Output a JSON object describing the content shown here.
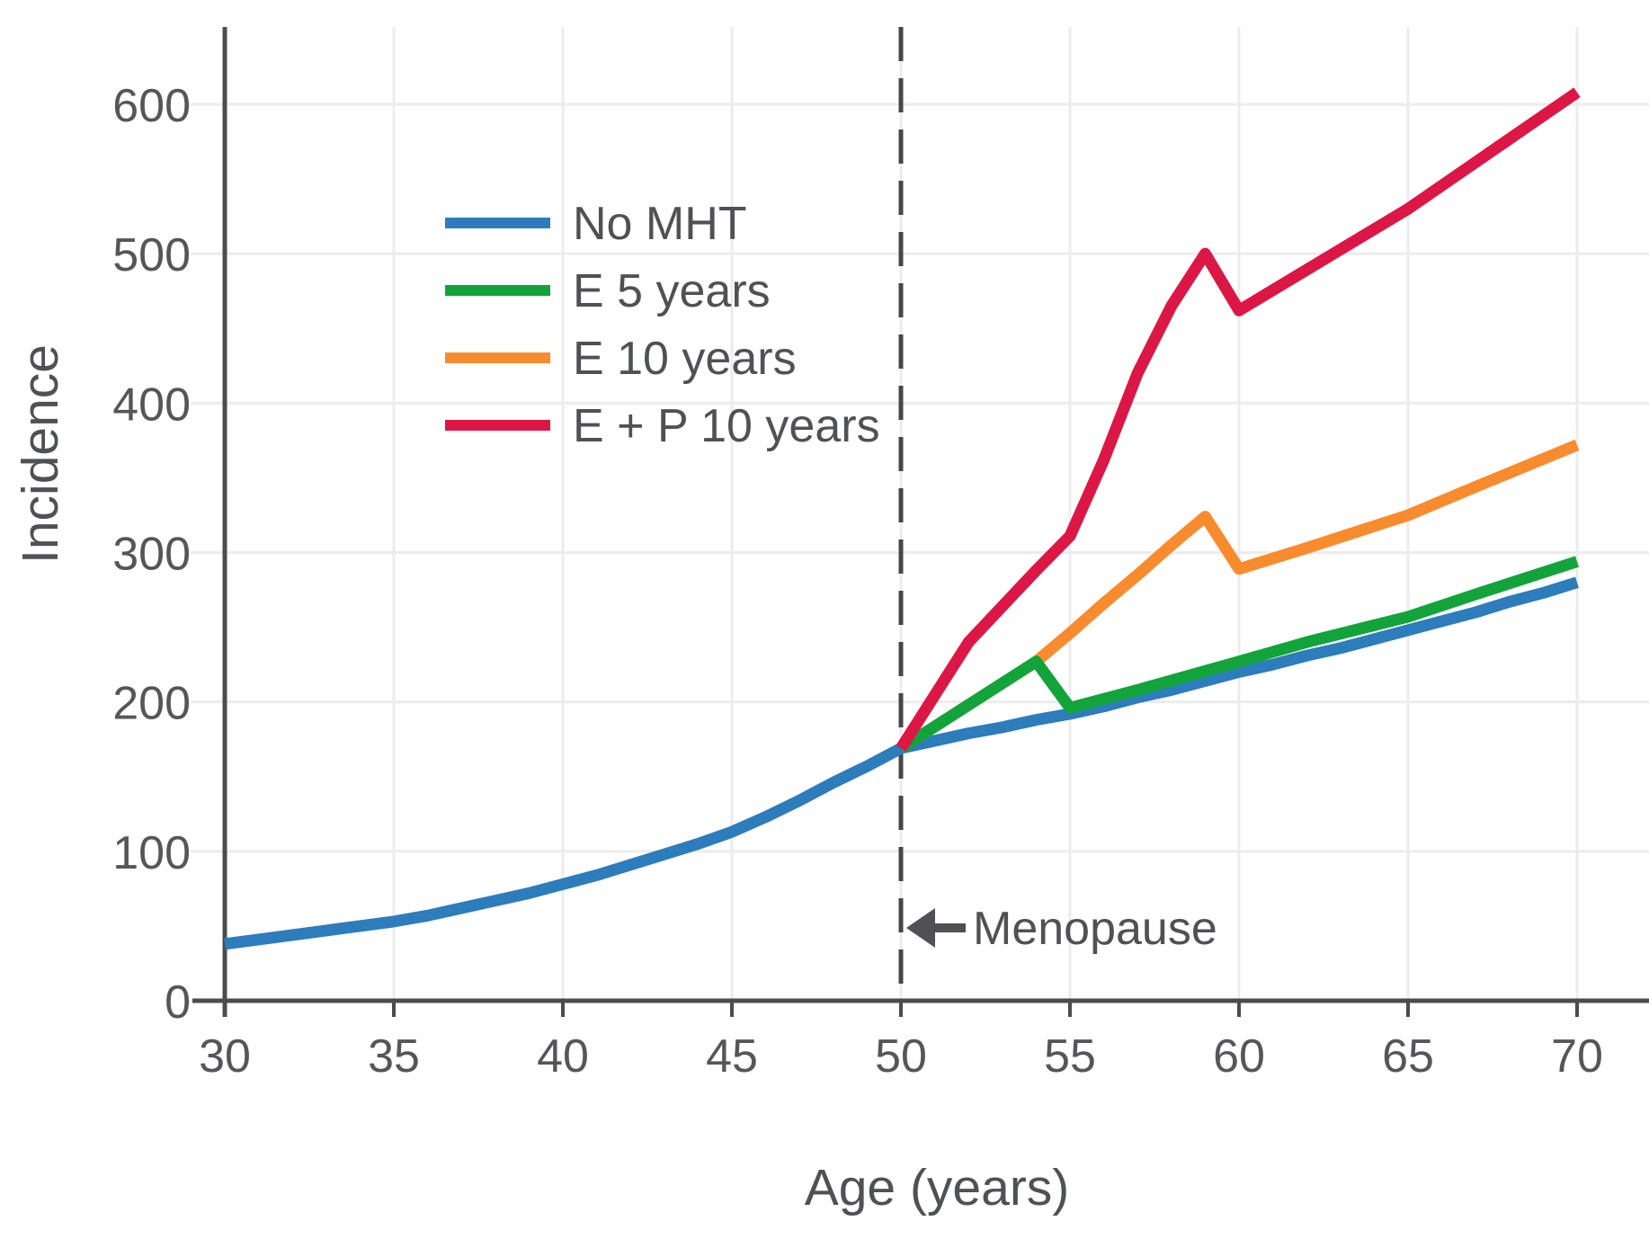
{
  "chart_data": {
    "type": "line",
    "title": "",
    "xlabel": "Age (years)",
    "ylabel": "Incidence",
    "x_ticks": [
      30,
      35,
      40,
      45,
      50,
      55,
      60,
      65,
      70
    ],
    "y_ticks": [
      0,
      100,
      200,
      300,
      400,
      500,
      600
    ],
    "xlim": [
      30,
      72.1
    ],
    "ylim": [
      0,
      651
    ],
    "grid": true,
    "legend_position": "upper left inside",
    "vline": {
      "x": 50,
      "style": "dashed",
      "color": "#47474a"
    },
    "annotation": {
      "text": "Menopause",
      "points_to_age": 50,
      "y_value": 49
    },
    "series": [
      {
        "name": "No MHT",
        "color": "#2d7cbb",
        "draw_order": 0,
        "x": [
          30,
          31,
          32,
          33,
          34,
          35,
          36,
          37,
          38,
          39,
          40,
          41,
          42,
          43,
          44,
          45,
          46,
          47,
          48,
          49,
          50,
          51,
          52,
          53,
          54,
          55,
          56,
          57,
          58,
          59,
          60,
          61,
          62,
          63,
          64,
          65,
          66,
          67,
          68,
          69,
          70
        ],
        "y": [
          38,
          41,
          44,
          47,
          50,
          53,
          57,
          62,
          67,
          72,
          78,
          84,
          91,
          98,
          105,
          113,
          123,
          134,
          146,
          157,
          169,
          174,
          179,
          183,
          188,
          192,
          197,
          203,
          208,
          214,
          220,
          225,
          231,
          236,
          242,
          248,
          254,
          260,
          267,
          273,
          280
        ]
      },
      {
        "name": "E 5 years",
        "color": "#12a43a",
        "draw_order": 2,
        "x": [
          50,
          52,
          54,
          55,
          57,
          60,
          62,
          65,
          67,
          70
        ],
        "y": [
          169,
          198,
          227,
          196,
          208,
          227,
          240,
          257,
          272,
          294
        ]
      },
      {
        "name": "E 10 years",
        "color": "#f98b2f",
        "draw_order": 1,
        "x": [
          50,
          52,
          54,
          55,
          56,
          57,
          58,
          59,
          60,
          62,
          65,
          67,
          70
        ],
        "y": [
          169,
          198,
          227,
          246,
          266,
          285,
          305,
          324,
          289,
          303,
          325,
          344,
          372
        ]
      },
      {
        "name": "E + P 10 years",
        "color": "#dc1745",
        "draw_order": 3,
        "x": [
          50,
          52,
          54,
          55,
          56,
          57,
          58,
          59,
          60,
          65,
          70
        ],
        "y": [
          169,
          240,
          288,
          311,
          362,
          420,
          465,
          500,
          462,
          530,
          608
        ]
      }
    ]
  },
  "colors": {
    "axis": "#4c4c4e",
    "grid": "#ececec",
    "tick_text": "#56565a",
    "title_text": "#505156",
    "annotation": "#515155",
    "background": "#ffffff"
  }
}
